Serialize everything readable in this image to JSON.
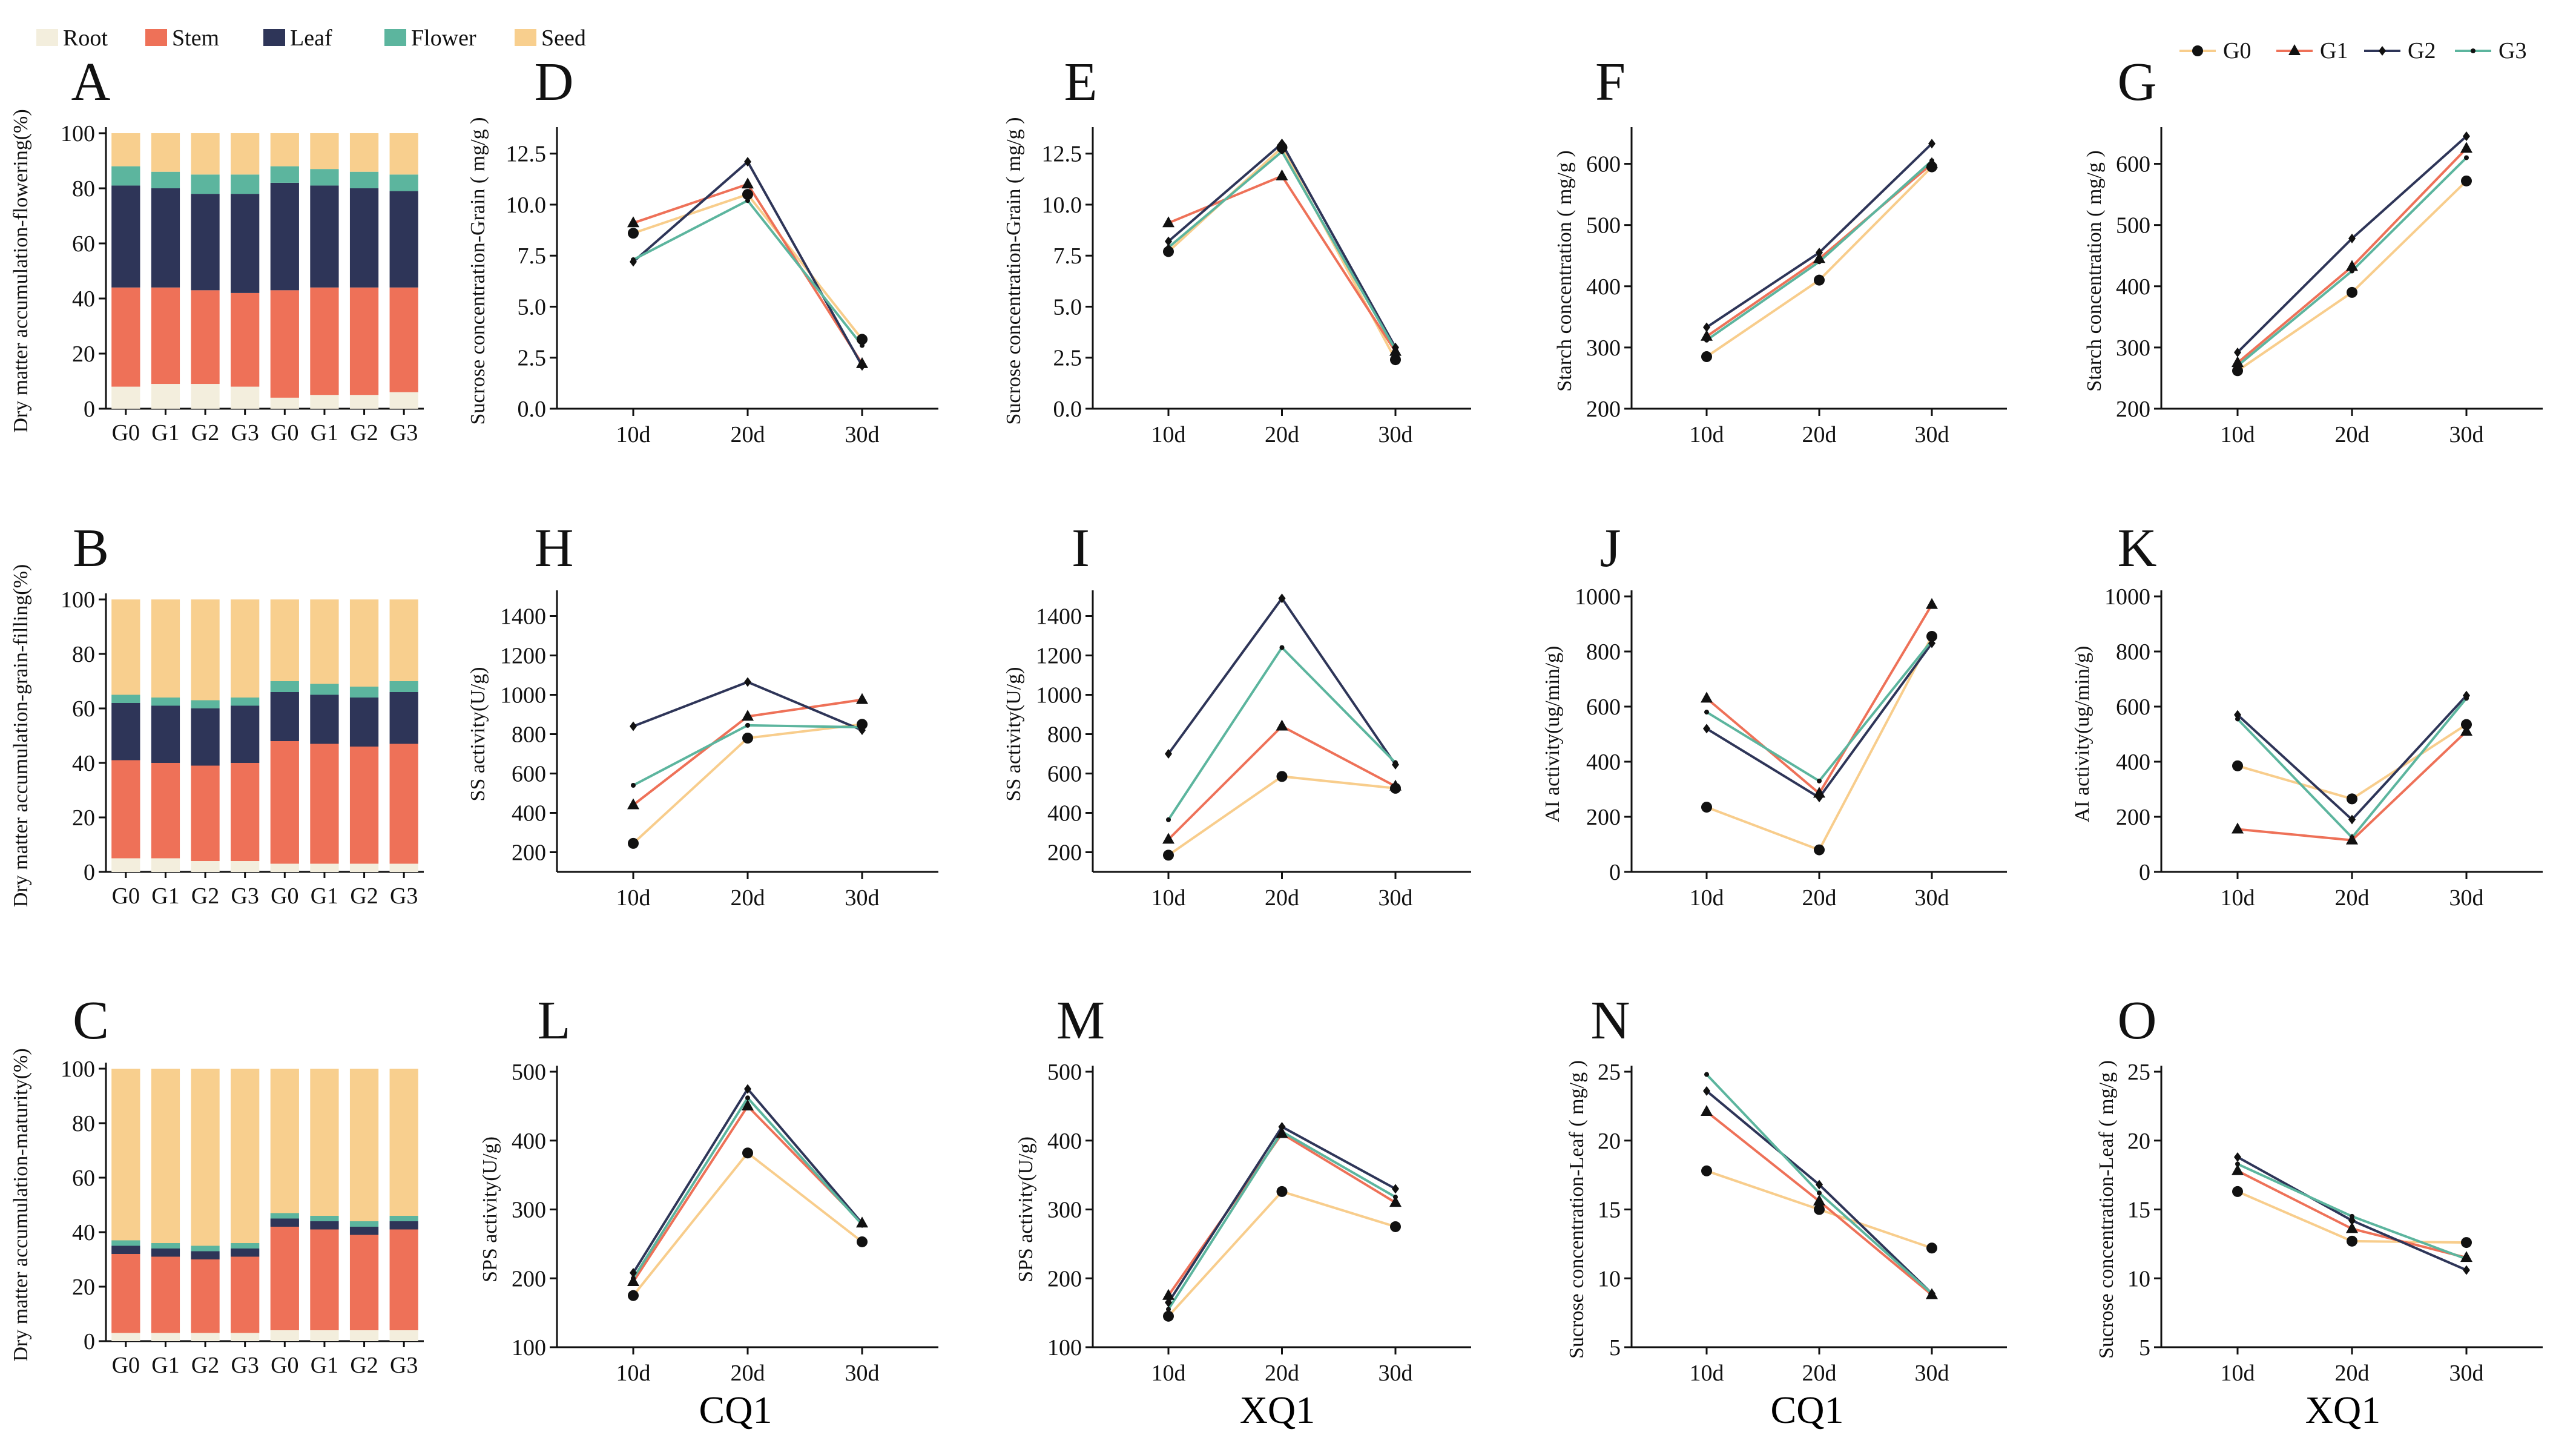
{
  "figure": {
    "legend_stack": [
      {
        "label": "Root",
        "color": "#F3EEDD"
      },
      {
        "label": "Stem",
        "color": "#EE7158"
      },
      {
        "label": "Leaf",
        "color": "#2E3558"
      },
      {
        "label": "Flower",
        "color": "#5CB59E"
      },
      {
        "label": "Seed",
        "color": "#F8CF8E"
      }
    ],
    "legend_lines": [
      {
        "label": "G0",
        "color": "#F8CD8C",
        "marker": "circle"
      },
      {
        "label": "G1",
        "color": "#EE7158",
        "marker": "triangle"
      },
      {
        "label": "G2",
        "color": "#2E3558",
        "marker": "diamond"
      },
      {
        "label": "G3",
        "color": "#5CB59E",
        "marker": "star"
      }
    ],
    "bottom_labels": [
      "CQ1",
      "XQ1",
      "CQ1",
      "XQ1"
    ]
  },
  "chart_data": [
    {
      "id": "A",
      "type": "bar",
      "stacked": true,
      "ylabel": "Dry matter accumulation-flowering(%)",
      "ylim": [
        0,
        100
      ],
      "yticks": [
        0,
        20,
        40,
        60,
        80,
        100
      ],
      "categories": [
        "G0",
        "G1",
        "G2",
        "G3",
        "G0",
        "G1",
        "G2",
        "G3"
      ],
      "series": [
        {
          "name": "Root",
          "values": [
            8,
            9,
            9,
            8,
            4,
            5,
            5,
            6
          ]
        },
        {
          "name": "Stem",
          "values": [
            36,
            35,
            34,
            34,
            39,
            39,
            39,
            38
          ]
        },
        {
          "name": "Leaf",
          "values": [
            37,
            36,
            35,
            36,
            39,
            37,
            36,
            35
          ]
        },
        {
          "name": "Flower",
          "values": [
            7,
            6,
            7,
            7,
            6,
            6,
            6,
            6
          ]
        },
        {
          "name": "Seed",
          "values": [
            12,
            14,
            15,
            15,
            12,
            13,
            14,
            15
          ]
        }
      ]
    },
    {
      "id": "B",
      "type": "bar",
      "stacked": true,
      "ylabel": "Dry matter accumulation-grain-filling(%)",
      "ylim": [
        0,
        100
      ],
      "yticks": [
        0,
        20,
        40,
        60,
        80,
        100
      ],
      "categories": [
        "G0",
        "G1",
        "G2",
        "G3",
        "G0",
        "G1",
        "G2",
        "G3"
      ],
      "series": [
        {
          "name": "Root",
          "values": [
            5,
            5,
            4,
            4,
            3,
            3,
            3,
            3
          ]
        },
        {
          "name": "Stem",
          "values": [
            36,
            35,
            35,
            36,
            45,
            44,
            43,
            44
          ]
        },
        {
          "name": "Leaf",
          "values": [
            21,
            21,
            21,
            21,
            18,
            18,
            18,
            19
          ]
        },
        {
          "name": "Flower",
          "values": [
            3,
            3,
            3,
            3,
            4,
            4,
            4,
            4
          ]
        },
        {
          "name": "Seed",
          "values": [
            35,
            36,
            37,
            36,
            30,
            31,
            32,
            30
          ]
        }
      ]
    },
    {
      "id": "C",
      "type": "bar",
      "stacked": true,
      "ylabel": "Dry matter accumulation-maturity(%)",
      "ylim": [
        0,
        100
      ],
      "yticks": [
        0,
        20,
        40,
        60,
        80,
        100
      ],
      "categories": [
        "G0",
        "G1",
        "G2",
        "G3",
        "G0",
        "G1",
        "G2",
        "G3"
      ],
      "series": [
        {
          "name": "Root",
          "values": [
            3,
            3,
            3,
            3,
            4,
            4,
            4,
            4
          ]
        },
        {
          "name": "Stem",
          "values": [
            29,
            28,
            27,
            28,
            38,
            37,
            35,
            37
          ]
        },
        {
          "name": "Leaf",
          "values": [
            3,
            3,
            3,
            3,
            3,
            3,
            3,
            3
          ]
        },
        {
          "name": "Flower",
          "values": [
            2,
            2,
            2,
            2,
            2,
            2,
            2,
            2
          ]
        },
        {
          "name": "Seed",
          "values": [
            63,
            64,
            65,
            64,
            53,
            54,
            56,
            54
          ]
        }
      ]
    },
    {
      "id": "D",
      "type": "line",
      "ylabel": "Sucrose concentration-Grain ( mg/g )",
      "categories": [
        "10d",
        "20d",
        "30d"
      ],
      "ylim": [
        0,
        13.5
      ],
      "yticks": [
        "0.0",
        "2.5",
        "5.0",
        "7.5",
        "10.0",
        "12.5"
      ],
      "series": [
        {
          "name": "G0",
          "values": [
            8.6,
            10.5,
            3.4
          ]
        },
        {
          "name": "G1",
          "values": [
            9.1,
            11.0,
            2.2
          ]
        },
        {
          "name": "G2",
          "values": [
            7.2,
            12.1,
            2.1
          ]
        },
        {
          "name": "G3",
          "values": [
            7.3,
            10.2,
            3.1
          ]
        }
      ]
    },
    {
      "id": "E",
      "type": "line",
      "ylabel": "Sucrose concentration-Grain ( mg/g )",
      "categories": [
        "10d",
        "20d",
        "30d"
      ],
      "ylim": [
        0,
        13.5
      ],
      "yticks": [
        "0.0",
        "2.5",
        "5.0",
        "7.5",
        "10.0",
        "12.5"
      ],
      "series": [
        {
          "name": "G0",
          "values": [
            7.7,
            12.8,
            2.4
          ]
        },
        {
          "name": "G1",
          "values": [
            9.1,
            11.4,
            2.8
          ]
        },
        {
          "name": "G2",
          "values": [
            8.2,
            13.0,
            3.0
          ]
        },
        {
          "name": "G3",
          "values": [
            7.9,
            12.6,
            2.9
          ]
        }
      ]
    },
    {
      "id": "F",
      "type": "line",
      "ylabel": "Starch concentration ( mg/g )",
      "categories": [
        "10d",
        "20d",
        "30d"
      ],
      "ylim": [
        200,
        650
      ],
      "yticks": [
        "200",
        "300",
        "400",
        "500",
        "600"
      ],
      "series": [
        {
          "name": "G0",
          "values": [
            285,
            410,
            595
          ]
        },
        {
          "name": "G1",
          "values": [
            318,
            445,
            600
          ]
        },
        {
          "name": "G2",
          "values": [
            333,
            455,
            633
          ]
        },
        {
          "name": "G3",
          "values": [
            312,
            440,
            605
          ]
        }
      ]
    },
    {
      "id": "G",
      "type": "line",
      "ylabel": "Starch concentration ( mg/g )",
      "categories": [
        "10d",
        "20d",
        "30d"
      ],
      "ylim": [
        200,
        650
      ],
      "yticks": [
        "200",
        "300",
        "400",
        "500",
        "600"
      ],
      "series": [
        {
          "name": "G0",
          "values": [
            262,
            390,
            572
          ]
        },
        {
          "name": "G1",
          "values": [
            275,
            432,
            625
          ]
        },
        {
          "name": "G2",
          "values": [
            292,
            478,
            645
          ]
        },
        {
          "name": "G3",
          "values": [
            270,
            425,
            610
          ]
        }
      ]
    },
    {
      "id": "H",
      "type": "line",
      "ylabel": "SS activity(U/g)",
      "categories": [
        "10d",
        "20d",
        "30d"
      ],
      "ylim": [
        100,
        1500
      ],
      "yticks": [
        "200",
        "400",
        "600",
        "800",
        "1000",
        "1200",
        "1400"
      ],
      "series": [
        {
          "name": "G0",
          "values": [
            245,
            780,
            850
          ]
        },
        {
          "name": "G1",
          "values": [
            440,
            890,
            975
          ]
        },
        {
          "name": "G2",
          "values": [
            840,
            1065,
            820
          ]
        },
        {
          "name": "G3",
          "values": [
            540,
            845,
            835
          ]
        }
      ]
    },
    {
      "id": "I",
      "type": "line",
      "ylabel": "SS activity(U/g)",
      "categories": [
        "10d",
        "20d",
        "30d"
      ],
      "ylim": [
        100,
        1500
      ],
      "yticks": [
        "200",
        "400",
        "600",
        "800",
        "1000",
        "1200",
        "1400"
      ],
      "series": [
        {
          "name": "G0",
          "values": [
            185,
            585,
            525
          ]
        },
        {
          "name": "G1",
          "values": [
            265,
            840,
            535
          ]
        },
        {
          "name": "G2",
          "values": [
            700,
            1490,
            645
          ]
        },
        {
          "name": "G3",
          "values": [
            365,
            1240,
            655
          ]
        }
      ]
    },
    {
      "id": "J",
      "type": "line",
      "ylabel": "AI activity(ug/min/g)",
      "categories": [
        "10d",
        "20d",
        "30d"
      ],
      "ylim": [
        0,
        1000
      ],
      "yticks": [
        "0",
        "200",
        "400",
        "600",
        "800",
        "1000"
      ],
      "series": [
        {
          "name": "G0",
          "values": [
            235,
            80,
            855
          ]
        },
        {
          "name": "G1",
          "values": [
            630,
            285,
            970
          ]
        },
        {
          "name": "G2",
          "values": [
            520,
            270,
            830
          ]
        },
        {
          "name": "G3",
          "values": [
            580,
            330,
            840
          ]
        }
      ]
    },
    {
      "id": "K",
      "type": "line",
      "ylabel": "AI activity(ug/min/g)",
      "categories": [
        "10d",
        "20d",
        "30d"
      ],
      "ylim": [
        0,
        1000
      ],
      "yticks": [
        "0",
        "200",
        "400",
        "600",
        "800",
        "1000"
      ],
      "series": [
        {
          "name": "G0",
          "values": [
            385,
            265,
            535
          ]
        },
        {
          "name": "G1",
          "values": [
            155,
            115,
            510
          ]
        },
        {
          "name": "G2",
          "values": [
            570,
            190,
            640
          ]
        },
        {
          "name": "G3",
          "values": [
            555,
            125,
            630
          ]
        }
      ]
    },
    {
      "id": "L",
      "type": "line",
      "ylabel": "SPS activity(U/g)",
      "categories": [
        "10d",
        "20d",
        "30d"
      ],
      "ylim": [
        100,
        500
      ],
      "yticks": [
        "100",
        "200",
        "300",
        "400",
        "500"
      ],
      "series": [
        {
          "name": "G0",
          "values": [
            175,
            382,
            253
          ]
        },
        {
          "name": "G1",
          "values": [
            195,
            450,
            280
          ]
        },
        {
          "name": "G2",
          "values": [
            208,
            475,
            280
          ]
        },
        {
          "name": "G3",
          "values": [
            200,
            462,
            278
          ]
        }
      ]
    },
    {
      "id": "M",
      "type": "line",
      "ylabel": "SPS activity(U/g)",
      "categories": [
        "10d",
        "20d",
        "30d"
      ],
      "ylim": [
        100,
        500
      ],
      "yticks": [
        "100",
        "200",
        "300",
        "400",
        "500"
      ],
      "series": [
        {
          "name": "G0",
          "values": [
            145,
            326,
            275
          ]
        },
        {
          "name": "G1",
          "values": [
            175,
            410,
            310
          ]
        },
        {
          "name": "G2",
          "values": [
            165,
            420,
            330
          ]
        },
        {
          "name": "G3",
          "values": [
            155,
            413,
            318
          ]
        }
      ]
    },
    {
      "id": "N",
      "type": "line",
      "ylabel": "Sucrose concentration-Leaf ( mg/g )",
      "categories": [
        "10d",
        "20d",
        "30d"
      ],
      "ylim": [
        5,
        25
      ],
      "yticks": [
        "5",
        "10",
        "15",
        "20",
        "25"
      ],
      "series": [
        {
          "name": "G0",
          "values": [
            17.8,
            15.0,
            12.2
          ]
        },
        {
          "name": "G1",
          "values": [
            22.1,
            15.6,
            8.8
          ]
        },
        {
          "name": "G2",
          "values": [
            23.6,
            16.8,
            8.9
          ]
        },
        {
          "name": "G3",
          "values": [
            24.8,
            16.2,
            8.9
          ]
        }
      ]
    },
    {
      "id": "O",
      "type": "line",
      "ylabel": "Sucrose concentration-Leaf ( mg/g )",
      "categories": [
        "10d",
        "20d",
        "30d"
      ],
      "ylim": [
        5,
        25
      ],
      "yticks": [
        "5",
        "10",
        "15",
        "20",
        "25"
      ],
      "series": [
        {
          "name": "G0",
          "values": [
            16.3,
            12.7,
            12.6
          ]
        },
        {
          "name": "G1",
          "values": [
            17.8,
            13.6,
            11.5
          ]
        },
        {
          "name": "G2",
          "values": [
            18.8,
            14.2,
            10.6
          ]
        },
        {
          "name": "G3",
          "values": [
            18.3,
            14.5,
            11.4
          ]
        }
      ]
    }
  ]
}
